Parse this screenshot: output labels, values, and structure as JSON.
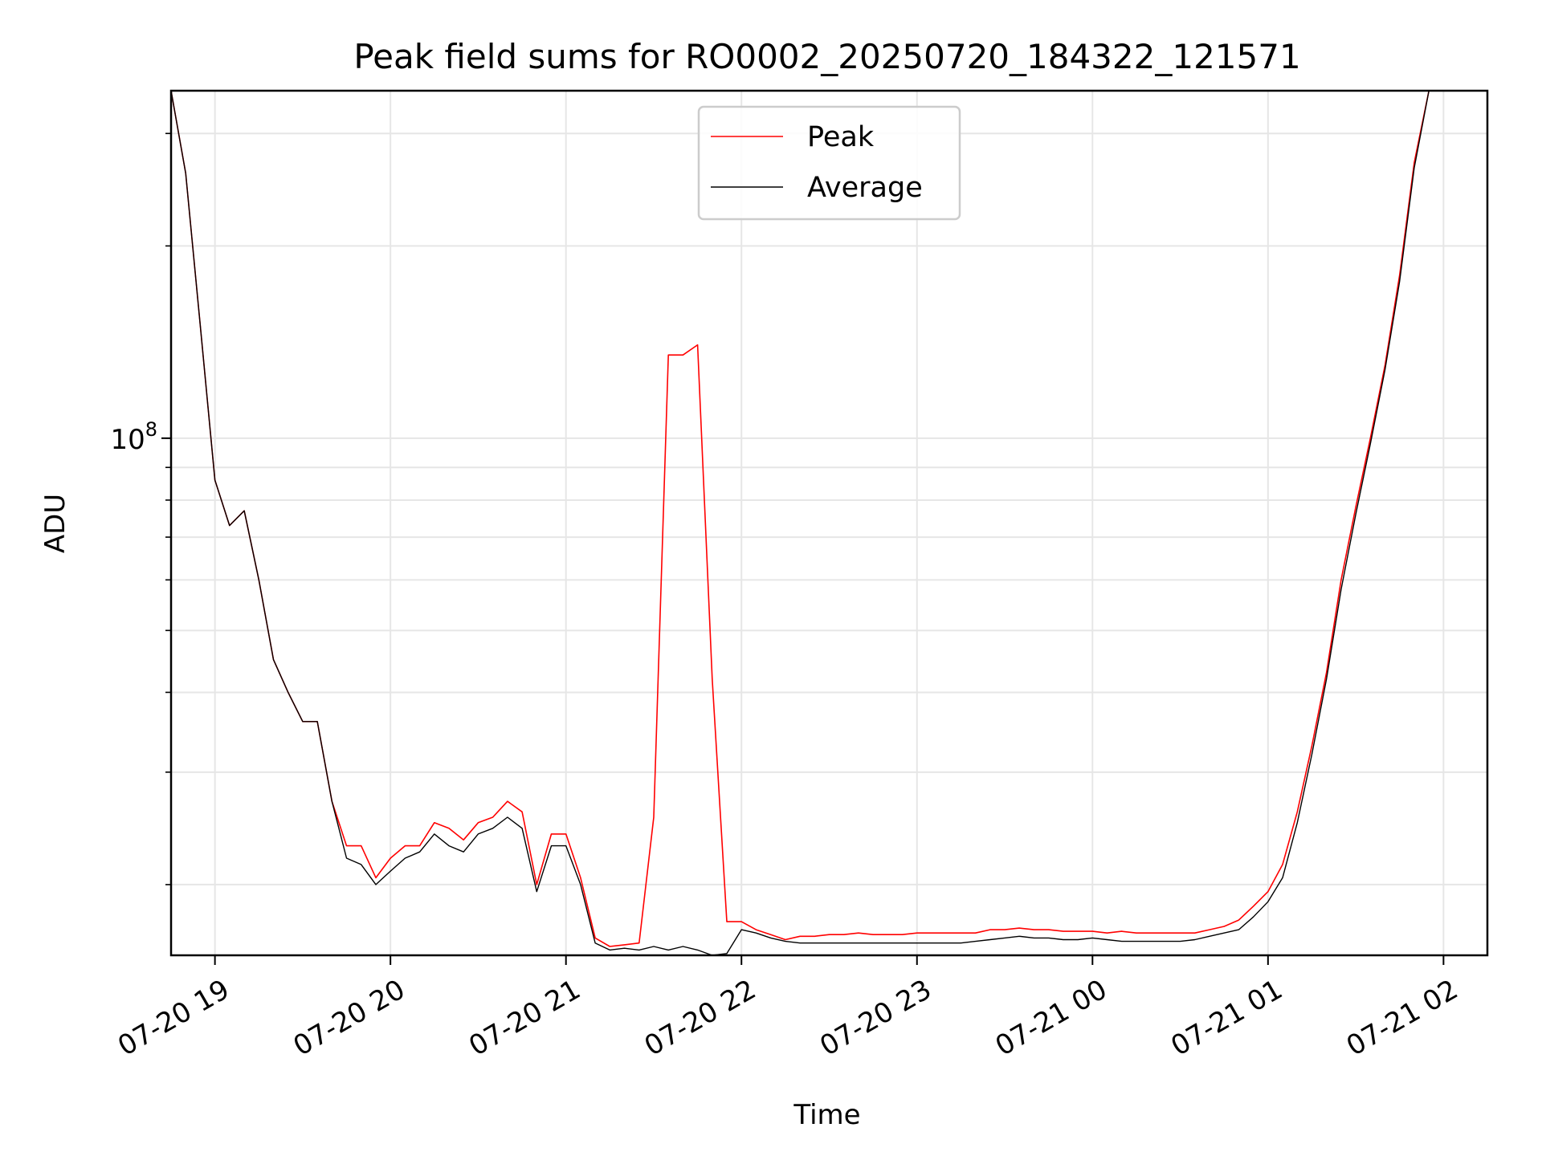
{
  "chart_data": {
    "type": "line",
    "title": "Peak field sums for RO0002_20250720_184322_121571",
    "xlabel": "Time",
    "ylabel": "ADU",
    "y_scale": "log",
    "grid": true,
    "legend_position": "upper center",
    "x_ticks": [
      "07-20 19",
      "07-20 20",
      "07-20 21",
      "07-20 22",
      "07-20 23",
      "07-21 00",
      "07-21 01",
      "07-21 02"
    ],
    "y_tick_labels": [
      {
        "base": "10",
        "exp": "8",
        "value": 100000000
      }
    ],
    "xlim": [
      "2025-07-20 18:45",
      "2025-07-21 02:15"
    ],
    "ylim": [
      15500000,
      350000000
    ],
    "x": [
      "2025-07-20 18:45",
      "2025-07-20 18:50",
      "2025-07-20 18:55",
      "2025-07-20 19:00",
      "2025-07-20 19:05",
      "2025-07-20 19:10",
      "2025-07-20 19:15",
      "2025-07-20 19:20",
      "2025-07-20 19:25",
      "2025-07-20 19:30",
      "2025-07-20 19:35",
      "2025-07-20 19:40",
      "2025-07-20 19:45",
      "2025-07-20 19:50",
      "2025-07-20 19:55",
      "2025-07-20 20:00",
      "2025-07-20 20:05",
      "2025-07-20 20:10",
      "2025-07-20 20:15",
      "2025-07-20 20:20",
      "2025-07-20 20:25",
      "2025-07-20 20:30",
      "2025-07-20 20:35",
      "2025-07-20 20:40",
      "2025-07-20 20:45",
      "2025-07-20 20:50",
      "2025-07-20 20:55",
      "2025-07-20 21:00",
      "2025-07-20 21:05",
      "2025-07-20 21:10",
      "2025-07-20 21:15",
      "2025-07-20 21:20",
      "2025-07-20 21:25",
      "2025-07-20 21:30",
      "2025-07-20 21:35",
      "2025-07-20 21:40",
      "2025-07-20 21:45",
      "2025-07-20 21:50",
      "2025-07-20 21:55",
      "2025-07-20 22:00",
      "2025-07-20 22:05",
      "2025-07-20 22:10",
      "2025-07-20 22:15",
      "2025-07-20 22:20",
      "2025-07-20 22:25",
      "2025-07-20 22:30",
      "2025-07-20 22:35",
      "2025-07-20 22:40",
      "2025-07-20 22:45",
      "2025-07-20 22:50",
      "2025-07-20 22:55",
      "2025-07-20 23:00",
      "2025-07-20 23:05",
      "2025-07-20 23:10",
      "2025-07-20 23:15",
      "2025-07-20 23:20",
      "2025-07-20 23:25",
      "2025-07-20 23:30",
      "2025-07-20 23:35",
      "2025-07-20 23:40",
      "2025-07-20 23:45",
      "2025-07-20 23:50",
      "2025-07-20 23:55",
      "2025-07-21 00:00",
      "2025-07-21 00:05",
      "2025-07-21 00:10",
      "2025-07-21 00:15",
      "2025-07-21 00:20",
      "2025-07-21 00:25",
      "2025-07-21 00:30",
      "2025-07-21 00:35",
      "2025-07-21 00:40",
      "2025-07-21 00:45",
      "2025-07-21 00:50",
      "2025-07-21 00:55",
      "2025-07-21 01:00",
      "2025-07-21 01:05",
      "2025-07-21 01:10",
      "2025-07-21 01:15",
      "2025-07-21 01:20",
      "2025-07-21 01:25",
      "2025-07-21 01:30",
      "2025-07-21 01:35",
      "2025-07-21 01:40",
      "2025-07-21 01:45",
      "2025-07-21 01:50",
      "2025-07-21 01:55",
      "2025-07-21 02:00"
    ],
    "series": [
      {
        "name": "Peak",
        "color": "#ff0000",
        "values": [
          350000000,
          260000000,
          150000000,
          86000000,
          73000000,
          77000000,
          60000000,
          45000000,
          40000000,
          36000000,
          36000000,
          27000000,
          23000000,
          23000000,
          20500000,
          22000000,
          23000000,
          23000000,
          25000000,
          24500000,
          23500000,
          25000000,
          25500000,
          27000000,
          26000000,
          20000000,
          24000000,
          24000000,
          20500000,
          16500000,
          16000000,
          16100000,
          16200000,
          25500000,
          135000000,
          135000000,
          140000000,
          42000000,
          17500000,
          17500000,
          17000000,
          16700000,
          16400000,
          16600000,
          16600000,
          16700000,
          16700000,
          16800000,
          16700000,
          16700000,
          16700000,
          16800000,
          16800000,
          16800000,
          16800000,
          16800000,
          17000000,
          17000000,
          17100000,
          17000000,
          17000000,
          16900000,
          16900000,
          16900000,
          16800000,
          16900000,
          16800000,
          16800000,
          16800000,
          16800000,
          16800000,
          17000000,
          17200000,
          17600000,
          18500000,
          19500000,
          21500000,
          26000000,
          33000000,
          43000000,
          60000000,
          78000000,
          100000000,
          130000000,
          180000000,
          270000000,
          350000000,
          350000000
        ]
      },
      {
        "name": "Average",
        "color": "#000000",
        "values": [
          350000000,
          260000000,
          150000000,
          86000000,
          73000000,
          77000000,
          60000000,
          45000000,
          40000000,
          36000000,
          36000000,
          27000000,
          22000000,
          21500000,
          20000000,
          21000000,
          22000000,
          22500000,
          24000000,
          23000000,
          22500000,
          24000000,
          24500000,
          25500000,
          24500000,
          19500000,
          23000000,
          23000000,
          20000000,
          16200000,
          15800000,
          15900000,
          15800000,
          16000000,
          15800000,
          16000000,
          15800000,
          15500000,
          15600000,
          17000000,
          16800000,
          16500000,
          16300000,
          16200000,
          16200000,
          16200000,
          16200000,
          16200000,
          16200000,
          16200000,
          16200000,
          16200000,
          16200000,
          16200000,
          16200000,
          16300000,
          16400000,
          16500000,
          16600000,
          16500000,
          16500000,
          16400000,
          16400000,
          16500000,
          16400000,
          16300000,
          16300000,
          16300000,
          16300000,
          16300000,
          16400000,
          16600000,
          16800000,
          17000000,
          17800000,
          18800000,
          20500000,
          25000000,
          32000000,
          42000000,
          58000000,
          76000000,
          98000000,
          128000000,
          176000000,
          265000000,
          350000000,
          350000000
        ]
      }
    ]
  }
}
